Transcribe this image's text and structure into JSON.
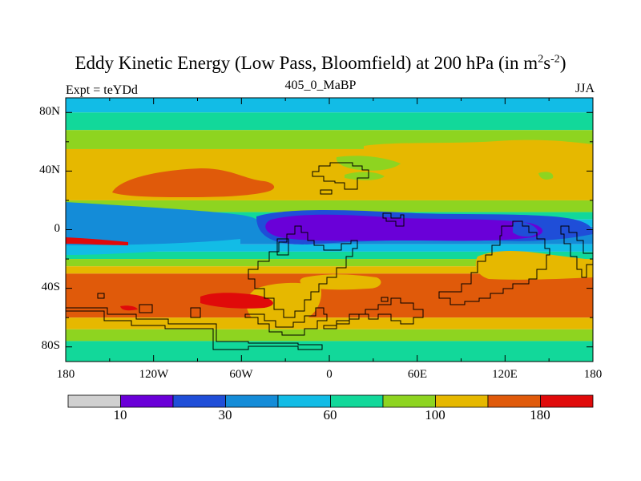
{
  "header": {
    "title_main": "Eddy Kinetic Energy (Low Pass, Bloomfield) at 200 hPa (in m",
    "title_sup1": "2",
    "title_mid": "s",
    "title_sup2": "-2",
    "title_end": ")",
    "left_label": "Expt = teYDd",
    "center_label": "405_0_MaBP",
    "right_label": "JJA"
  },
  "map": {
    "y_ticks": [
      "80N",
      "40N",
      "0",
      "40S",
      "80S"
    ],
    "x_ticks": [
      "180",
      "120W",
      "60W",
      "0",
      "60E",
      "120E",
      "180"
    ],
    "bands": [
      {
        "lat_top": 90,
        "lat_bot": 80,
        "level": 4
      },
      {
        "lat_top": 80,
        "lat_bot": 68,
        "level": 5
      },
      {
        "lat_top": 68,
        "lat_bot": 55,
        "level": 6
      },
      {
        "lat_top": 55,
        "lat_bot": 20,
        "level": 7
      },
      {
        "lat_top": 20,
        "lat_bot": 12,
        "level": 6
      },
      {
        "lat_top": 12,
        "lat_bot": 7,
        "level": 5
      },
      {
        "lat_top": 7,
        "lat_bot": 2,
        "level": 4
      },
      {
        "lat_top": 2,
        "lat_bot": -10,
        "level": 3
      },
      {
        "lat_top": -10,
        "lat_bot": -15,
        "level": 4
      },
      {
        "lat_top": -15,
        "lat_bot": -20,
        "level": 5
      },
      {
        "lat_top": -20,
        "lat_bot": -25,
        "level": 6
      },
      {
        "lat_top": -25,
        "lat_bot": -30,
        "level": 7
      },
      {
        "lat_top": -30,
        "lat_bot": -60,
        "level": 8
      },
      {
        "lat_top": -60,
        "lat_bot": -68,
        "level": 7
      },
      {
        "lat_top": -68,
        "lat_bot": -76,
        "level": 6
      },
      {
        "lat_top": -76,
        "lat_bot": -90,
        "level": 5
      }
    ]
  },
  "colorbar": {
    "colors": [
      "#d0d0d0",
      "#6a00d8",
      "#1f4ed8",
      "#148cd8",
      "#12bce6",
      "#12d89a",
      "#8ed420",
      "#e6b800",
      "#e05a0a",
      "#e00a0a"
    ],
    "labels": [
      {
        "text": "10",
        "boundary": 1
      },
      {
        "text": "30",
        "boundary": 3
      },
      {
        "text": "60",
        "boundary": 5
      },
      {
        "text": "100",
        "boundary": 7
      },
      {
        "text": "180",
        "boundary": 9
      }
    ]
  }
}
